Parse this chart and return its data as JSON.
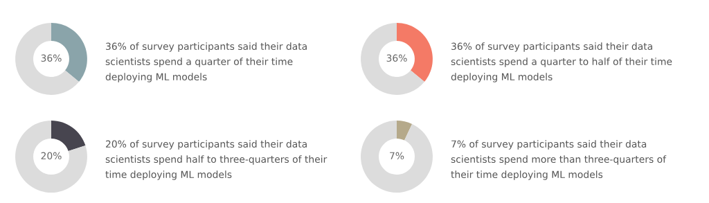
{
  "chart_data": [
    {
      "type": "donut",
      "categories": [
        null,
        null
      ],
      "values": [
        36,
        64
      ],
      "colors": [
        "#8aa4aa",
        "#dcdcdc"
      ],
      "value_labels": [
        "36%",
        null
      ],
      "annotations": [
        "36% of survey participants said their data scientists spend a quarter of their time deploying ML models"
      ]
    },
    {
      "type": "donut",
      "categories": [
        null,
        null
      ],
      "values": [
        36,
        64
      ],
      "colors": [
        "#f47a66",
        "#dcdcdc"
      ],
      "value_labels": [
        "36%",
        null
      ],
      "annotations": [
        "36% of survey participants said their data scientists spend a quarter to half of their time deploying ML models"
      ]
    },
    {
      "type": "donut",
      "categories": [
        null,
        null
      ],
      "values": [
        20,
        80
      ],
      "colors": [
        "#47454f",
        "#dcdcdc"
      ],
      "value_labels": [
        "20%",
        null
      ],
      "annotations": [
        "20% of survey participants said their data scientists spend half to three-quarters of their time deploying ML models"
      ]
    },
    {
      "type": "donut",
      "categories": [
        null,
        null
      ],
      "values": [
        7,
        93
      ],
      "colors": [
        "#b5a98a",
        "#dcdcdc"
      ],
      "value_labels": [
        "7%",
        null
      ],
      "annotations": [
        "7% of survey participants said their data scientists spend more than three-quarters of their time deploying ML models"
      ]
    }
  ]
}
